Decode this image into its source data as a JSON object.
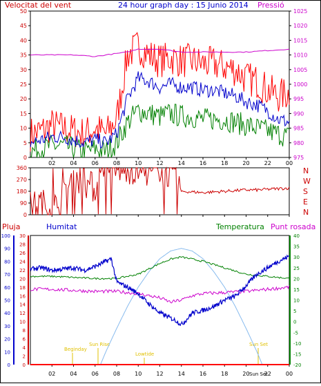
{
  "header": {
    "wind_title": "Velocitat del vent",
    "title": "24 hour graph day : 15 Junio 2014",
    "pressure_title": "Pressió"
  },
  "dir_labels": [
    "N",
    "W",
    "S",
    "E",
    "N"
  ],
  "legend": {
    "rain": "Pluja",
    "humidity": "Humitat",
    "temperature": "Temperatura",
    "dewpoint": "Punt rosada"
  },
  "sun_labels": {
    "beginday": "Beginday",
    "sunrise": "Sun Rise",
    "lowtide": "Lowtide",
    "sunset": "Sun Set",
    "endday": "Sun Set"
  },
  "colors": {
    "wind_gust": "#ff0000",
    "wind_avg": "#0000cc",
    "wind_low": "#008000",
    "pressure": "#cc00cc",
    "direction": "#cc0000",
    "humidity": "#0000cc",
    "temperature": "#008000",
    "dewpoint": "#cc00cc",
    "solar": "#88bbee",
    "rain": "#ff0000",
    "axis_left": "#cc0000",
    "axis_right": "#cc00cc",
    "axis_green": "#008000",
    "axis_humidity": "#0000cc"
  },
  "chart_data": [
    {
      "type": "line",
      "x_ticks": [
        "02",
        "04",
        "06",
        "08",
        "10",
        "12",
        "14",
        "16",
        "18",
        "20",
        "22",
        "00"
      ],
      "y_left": {
        "ticks": [
          0,
          5,
          10,
          15,
          20,
          25,
          30,
          35,
          40,
          45,
          50
        ],
        "ylim": [
          0,
          50
        ]
      },
      "y_right": {
        "ticks": [
          975,
          980,
          985,
          990,
          995,
          1000,
          1005,
          1010,
          1015,
          1020,
          1025
        ],
        "ylim": [
          975,
          1025
        ]
      },
      "series": [
        {
          "key": "gust",
          "x": [
            0,
            1,
            2,
            3,
            4,
            5,
            6,
            7,
            8,
            9,
            10,
            11,
            12,
            13,
            14,
            15,
            16,
            17,
            18,
            19,
            20,
            21,
            22,
            23,
            24
          ],
          "values": [
            8,
            9,
            11,
            10,
            9,
            8,
            10,
            8,
            13,
            35,
            38,
            35,
            33,
            34,
            33,
            33,
            32,
            32,
            31,
            30,
            27,
            26,
            23,
            21,
            22
          ]
        },
        {
          "key": "avg",
          "x": [
            0,
            1,
            2,
            3,
            4,
            5,
            6,
            7,
            8,
            9,
            10,
            11,
            12,
            13,
            14,
            15,
            16,
            17,
            18,
            19,
            20,
            21,
            22,
            23,
            24
          ],
          "values": [
            5,
            6,
            7,
            7,
            6,
            5,
            6,
            5,
            8,
            20,
            27,
            26,
            24,
            25,
            24,
            24,
            23,
            23,
            22,
            21,
            19,
            18,
            16,
            13,
            12
          ]
        },
        {
          "key": "low",
          "x": [
            0,
            1,
            2,
            3,
            4,
            5,
            6,
            7,
            8,
            9,
            10,
            11,
            12,
            13,
            14,
            15,
            16,
            17,
            18,
            19,
            20,
            21,
            22,
            23,
            24
          ],
          "values": [
            2,
            3,
            4,
            4,
            3,
            2,
            3,
            2,
            5,
            12,
            16,
            15,
            14,
            15,
            14,
            14,
            13,
            13,
            13,
            12,
            11,
            10,
            9,
            8,
            7
          ]
        },
        {
          "key": "pressure",
          "x": [
            0,
            2,
            4,
            6,
            7,
            8,
            9,
            10,
            12,
            14,
            16,
            18,
            20,
            22,
            24
          ],
          "values": [
            1010,
            1010,
            1010,
            1009.5,
            1010,
            1010.5,
            1011,
            1012,
            1012,
            1011,
            1011,
            1011,
            1011,
            1011.5,
            1012
          ]
        }
      ]
    },
    {
      "type": "line",
      "x_ticks": [
        "02",
        "04",
        "06",
        "08",
        "10",
        "12",
        "14",
        "16",
        "18",
        "20",
        "22",
        "00"
      ],
      "y_left": {
        "ticks": [
          0,
          90,
          180,
          270,
          360
        ],
        "ylim": [
          0,
          360
        ]
      },
      "series": [
        {
          "key": "direction",
          "x": [
            0,
            1,
            2,
            3,
            4,
            5,
            6,
            7,
            8,
            9,
            10,
            11,
            12,
            13,
            14,
            15,
            16,
            17,
            18,
            19,
            20,
            21,
            22,
            23,
            24
          ],
          "values": [
            60,
            90,
            40,
            120,
            300,
            250,
            200,
            330,
            340,
            350,
            340,
            330,
            335,
            320,
            180,
            175,
            170,
            175,
            180,
            185,
            190,
            190,
            195,
            200,
            205
          ]
        }
      ]
    },
    {
      "type": "line",
      "x_ticks": [
        "02",
        "04",
        "06",
        "08",
        "10",
        "12",
        "14",
        "16",
        "18",
        "20",
        "22",
        "00"
      ],
      "y_humidity": {
        "ticks": [
          0,
          10,
          20,
          30,
          40,
          50,
          60,
          70,
          80,
          90,
          100
        ],
        "ylim": [
          0,
          100
        ]
      },
      "y_rain": {
        "ticks": [
          0,
          2,
          4,
          6,
          8,
          10,
          12,
          14,
          16,
          18,
          20,
          22,
          24,
          26,
          28,
          30
        ],
        "ylim": [
          0,
          30
        ]
      },
      "y_temp": {
        "ticks": [
          -20,
          -15,
          -10,
          -5,
          0,
          5,
          10,
          15,
          20,
          25,
          30,
          35,
          40
        ],
        "ylim": [
          -20,
          40
        ]
      },
      "series": [
        {
          "key": "humidity",
          "x": [
            0,
            1,
            2,
            3,
            4,
            5,
            6,
            6.5,
            7,
            7.5,
            8,
            9,
            10,
            11,
            12,
            13,
            13.5,
            14,
            14.5,
            15,
            16,
            17,
            18,
            19,
            20,
            21,
            22,
            23,
            24
          ],
          "values": [
            74,
            75,
            73,
            74,
            75,
            73,
            76,
            78,
            80,
            82,
            64,
            60,
            55,
            47,
            40,
            36,
            34,
            31,
            35,
            40,
            42,
            45,
            50,
            53,
            61,
            70,
            75,
            80,
            84
          ]
        },
        {
          "key": "temperature",
          "x": [
            0,
            2,
            4,
            6,
            8,
            10,
            12,
            13,
            14,
            15,
            16,
            18,
            20,
            22,
            24
          ],
          "values": [
            21,
            21,
            20.5,
            20,
            20,
            22,
            27,
            29,
            30,
            29,
            28,
            25,
            22,
            21,
            20
          ]
        },
        {
          "key": "dewpoint",
          "x": [
            0,
            2,
            4,
            6,
            8,
            10,
            11,
            12,
            13,
            14,
            15,
            16,
            18,
            20,
            22,
            24
          ],
          "values": [
            15,
            15,
            14.5,
            14,
            14,
            13,
            12,
            11,
            9,
            10,
            12,
            13,
            13.5,
            14,
            15,
            16
          ]
        },
        {
          "key": "solar",
          "x": [
            6.5,
            7,
            8,
            9,
            10,
            11,
            12,
            13,
            14,
            15,
            16,
            17,
            18,
            19,
            20,
            21,
            21.5
          ],
          "values": [
            0,
            10,
            28,
            45,
            60,
            72,
            82,
            88,
            90,
            88,
            82,
            72,
            60,
            45,
            28,
            10,
            0
          ]
        },
        {
          "key": "rain",
          "x": [
            0,
            24
          ],
          "values": [
            0,
            0
          ]
        }
      ]
    }
  ]
}
